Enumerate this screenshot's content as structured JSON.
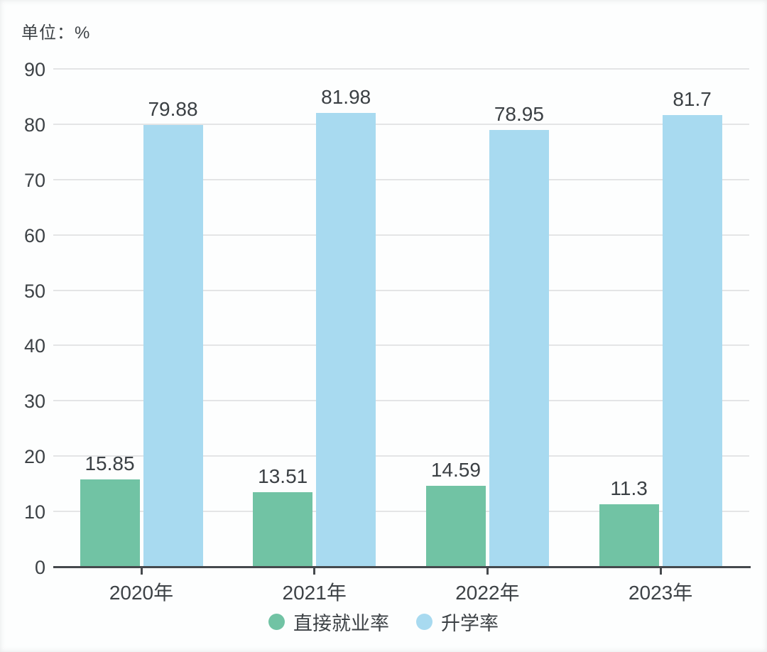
{
  "unit_label": "单位：%",
  "chart_data": {
    "type": "bar",
    "title": "",
    "xlabel": "",
    "ylabel": "单位：%",
    "categories": [
      "2020年",
      "2021年",
      "2022年",
      "2023年"
    ],
    "series": [
      {
        "name": "直接就业率",
        "color": "#71c3a4",
        "values": [
          15.85,
          13.51,
          14.59,
          11.3
        ]
      },
      {
        "name": "升学率",
        "color": "#a8daf0",
        "values": [
          79.88,
          81.98,
          78.95,
          81.7
        ]
      }
    ],
    "ylim": [
      0,
      90
    ],
    "ytick_step": 10,
    "grid": true,
    "legend_position": "bottom"
  },
  "colors": {
    "axis": "#45494d",
    "grid": "#e4e5e6",
    "text": "#3d4246",
    "background": "#fdfefe"
  }
}
